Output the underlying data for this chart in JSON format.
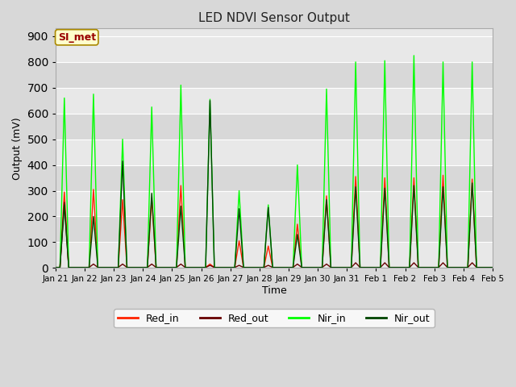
{
  "title": "LED NDVI Sensor Output",
  "xlabel": "Time",
  "ylabel": "Output (mV)",
  "ylim": [
    0,
    930
  ],
  "xlim": [
    0,
    15
  ],
  "fig_bg_color": "#d8d8d8",
  "plot_bg_color": "#e8e8e8",
  "band_colors": [
    "#e0e0e0",
    "#d0d0d0"
  ],
  "grid_color": "#ffffff",
  "annotation_text": "SI_met",
  "annotation_bg": "#ffffcc",
  "annotation_border": "#aa8800",
  "annotation_text_color": "#990000",
  "colors": {
    "Red_in": "#ff2200",
    "Red_out": "#660000",
    "Nir_in": "#00ff00",
    "Nir_out": "#004400"
  },
  "x_tick_labels": [
    "Jan 21",
    "Jan 22",
    "Jan 23",
    "Jan 24",
    "Jan 25",
    "Jan 26",
    "Jan 27",
    "Jan 28",
    "Jan 29",
    "Jan 30",
    "Jan 31",
    "Feb 1",
    "Feb 2",
    "Feb 3",
    "Feb 4",
    "Feb 5"
  ],
  "x_tick_positions": [
    0,
    1,
    2,
    3,
    4,
    5,
    6,
    7,
    8,
    9,
    10,
    11,
    12,
    13,
    14,
    15
  ],
  "y_ticks": [
    0,
    100,
    200,
    300,
    400,
    500,
    600,
    700,
    800,
    900
  ],
  "series": {
    "Red_in": {
      "x": [
        0.0,
        0.15,
        0.3,
        0.45,
        0.7,
        1.0,
        1.15,
        1.3,
        1.45,
        1.7,
        2.0,
        2.15,
        2.3,
        2.45,
        2.7,
        3.0,
        3.15,
        3.3,
        3.45,
        3.7,
        4.0,
        4.15,
        4.3,
        4.45,
        4.7,
        5.0,
        5.15,
        5.3,
        5.45,
        5.7,
        6.0,
        6.15,
        6.3,
        6.45,
        6.7,
        7.0,
        7.15,
        7.3,
        7.45,
        7.7,
        8.0,
        8.15,
        8.3,
        8.45,
        8.7,
        9.0,
        9.15,
        9.3,
        9.45,
        9.7,
        10.0,
        10.15,
        10.3,
        10.45,
        10.7,
        11.0,
        11.15,
        11.3,
        11.45,
        11.7,
        12.0,
        12.15,
        12.3,
        12.45,
        12.7,
        13.0,
        13.15,
        13.3,
        13.45,
        13.7,
        14.0,
        14.15,
        14.3,
        14.45,
        14.7,
        15.0
      ],
      "y": [
        2,
        2,
        295,
        2,
        2,
        2,
        2,
        305,
        2,
        2,
        2,
        2,
        265,
        2,
        2,
        2,
        2,
        270,
        2,
        2,
        2,
        2,
        320,
        2,
        2,
        2,
        2,
        15,
        2,
        2,
        2,
        2,
        105,
        2,
        2,
        2,
        2,
        85,
        2,
        2,
        2,
        2,
        170,
        2,
        2,
        2,
        2,
        280,
        2,
        2,
        2,
        2,
        355,
        2,
        2,
        2,
        2,
        350,
        2,
        2,
        2,
        2,
        350,
        2,
        2,
        2,
        2,
        360,
        2,
        2,
        2,
        2,
        345,
        2,
        2,
        2
      ]
    },
    "Red_out": {
      "x": [
        0.0,
        0.15,
        0.3,
        0.45,
        0.7,
        1.0,
        1.15,
        1.3,
        1.45,
        1.7,
        2.0,
        2.15,
        2.3,
        2.45,
        2.7,
        3.0,
        3.15,
        3.3,
        3.45,
        3.7,
        4.0,
        4.15,
        4.3,
        4.45,
        4.7,
        5.0,
        5.15,
        5.3,
        5.45,
        5.7,
        6.0,
        6.15,
        6.3,
        6.45,
        6.7,
        7.0,
        7.15,
        7.3,
        7.45,
        7.7,
        8.0,
        8.15,
        8.3,
        8.45,
        8.7,
        9.0,
        9.15,
        9.3,
        9.45,
        9.7,
        10.0,
        10.15,
        10.3,
        10.45,
        10.7,
        11.0,
        11.15,
        11.3,
        11.45,
        11.7,
        12.0,
        12.15,
        12.3,
        12.45,
        12.7,
        13.0,
        13.15,
        13.3,
        13.45,
        13.7,
        14.0,
        14.15,
        14.3,
        14.45,
        14.7,
        15.0
      ],
      "y": [
        2,
        2,
        255,
        2,
        2,
        2,
        2,
        15,
        2,
        2,
        2,
        2,
        15,
        2,
        2,
        2,
        2,
        15,
        2,
        2,
        2,
        2,
        15,
        2,
        2,
        2,
        2,
        10,
        2,
        2,
        2,
        2,
        10,
        2,
        2,
        2,
        2,
        10,
        2,
        2,
        2,
        2,
        15,
        2,
        2,
        2,
        2,
        15,
        2,
        2,
        2,
        2,
        20,
        2,
        2,
        2,
        2,
        20,
        2,
        2,
        2,
        2,
        20,
        2,
        2,
        2,
        2,
        20,
        2,
        2,
        2,
        2,
        20,
        2,
        2,
        2
      ]
    },
    "Nir_in": {
      "x": [
        0.0,
        0.15,
        0.3,
        0.45,
        0.7,
        1.0,
        1.15,
        1.3,
        1.45,
        1.7,
        2.0,
        2.15,
        2.3,
        2.45,
        2.7,
        3.0,
        3.15,
        3.3,
        3.45,
        3.7,
        4.0,
        4.15,
        4.3,
        4.45,
        4.7,
        5.0,
        5.15,
        5.3,
        5.45,
        5.7,
        6.0,
        6.15,
        6.3,
        6.45,
        6.7,
        7.0,
        7.15,
        7.3,
        7.45,
        7.7,
        8.0,
        8.15,
        8.3,
        8.45,
        8.7,
        9.0,
        9.15,
        9.3,
        9.45,
        9.7,
        10.0,
        10.15,
        10.3,
        10.45,
        10.7,
        11.0,
        11.15,
        11.3,
        11.45,
        11.7,
        12.0,
        12.15,
        12.3,
        12.45,
        12.7,
        13.0,
        13.15,
        13.3,
        13.45,
        13.7,
        14.0,
        14.15,
        14.3,
        14.45,
        14.7,
        15.0
      ],
      "y": [
        2,
        2,
        660,
        2,
        2,
        2,
        2,
        675,
        2,
        2,
        2,
        2,
        500,
        2,
        2,
        2,
        2,
        625,
        2,
        2,
        2,
        2,
        710,
        2,
        2,
        2,
        2,
        655,
        2,
        2,
        2,
        2,
        300,
        2,
        2,
        2,
        2,
        245,
        2,
        2,
        2,
        2,
        400,
        2,
        2,
        2,
        2,
        695,
        2,
        2,
        2,
        2,
        800,
        2,
        2,
        2,
        2,
        805,
        2,
        2,
        2,
        2,
        825,
        2,
        2,
        2,
        2,
        800,
        2,
        2,
        2,
        2,
        800,
        2,
        2,
        2
      ]
    },
    "Nir_out": {
      "x": [
        0.0,
        0.15,
        0.3,
        0.45,
        0.7,
        1.0,
        1.15,
        1.3,
        1.45,
        1.7,
        2.0,
        2.15,
        2.3,
        2.45,
        2.7,
        3.0,
        3.15,
        3.3,
        3.45,
        3.7,
        4.0,
        4.15,
        4.3,
        4.45,
        4.7,
        5.0,
        5.15,
        5.3,
        5.45,
        5.7,
        6.0,
        6.15,
        6.3,
        6.45,
        6.7,
        7.0,
        7.15,
        7.3,
        7.45,
        7.7,
        8.0,
        8.15,
        8.3,
        8.45,
        8.7,
        9.0,
        9.15,
        9.3,
        9.45,
        9.7,
        10.0,
        10.15,
        10.3,
        10.45,
        10.7,
        11.0,
        11.15,
        11.3,
        11.45,
        11.7,
        12.0,
        12.15,
        12.3,
        12.45,
        12.7,
        13.0,
        13.15,
        13.3,
        13.45,
        13.7,
        14.0,
        14.15,
        14.3,
        14.45,
        14.7,
        15.0
      ],
      "y": [
        2,
        2,
        245,
        2,
        2,
        2,
        2,
        200,
        2,
        2,
        2,
        2,
        415,
        2,
        2,
        2,
        2,
        290,
        2,
        2,
        2,
        2,
        240,
        2,
        2,
        2,
        2,
        650,
        2,
        2,
        2,
        2,
        230,
        2,
        2,
        2,
        2,
        235,
        2,
        2,
        2,
        2,
        130,
        2,
        2,
        2,
        2,
        265,
        2,
        2,
        2,
        2,
        315,
        2,
        2,
        2,
        2,
        310,
        2,
        2,
        2,
        2,
        320,
        2,
        2,
        2,
        2,
        315,
        2,
        2,
        2,
        2,
        330,
        2,
        2,
        2
      ]
    }
  }
}
